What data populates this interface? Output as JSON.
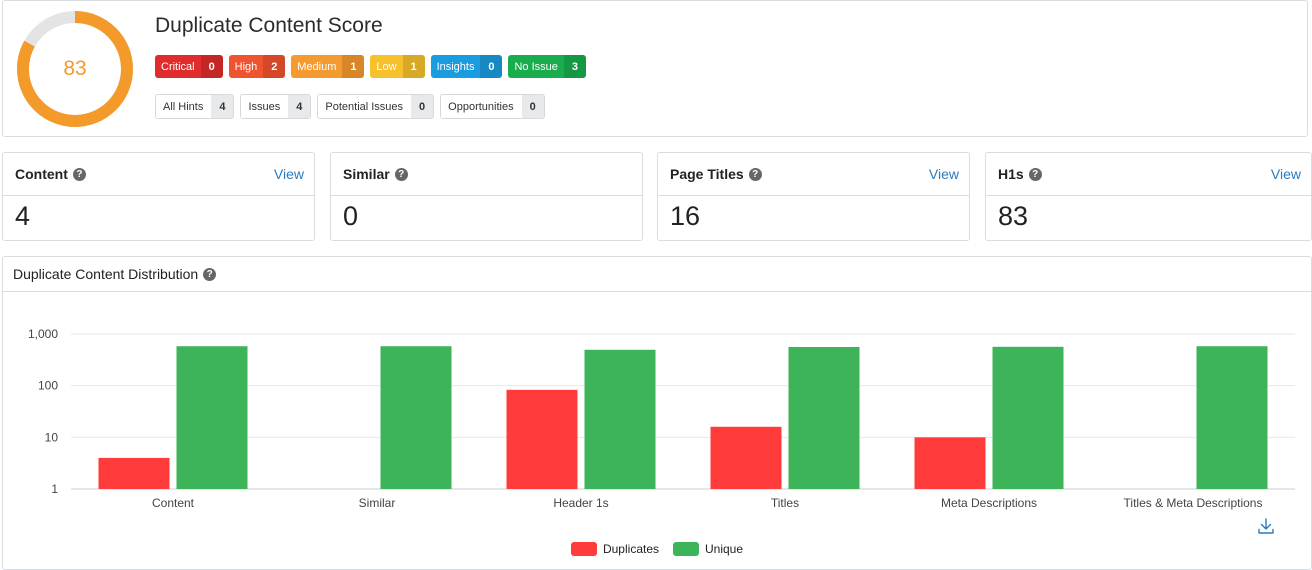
{
  "score": {
    "value": "83",
    "fraction": 0.83,
    "title": "Duplicate Content Score"
  },
  "severity": [
    {
      "label": "Critical",
      "count": "0",
      "color": "#e02c2c"
    },
    {
      "label": "High",
      "count": "2",
      "color": "#f0532f"
    },
    {
      "label": "Medium",
      "count": "1",
      "color": "#f59a2e"
    },
    {
      "label": "Low",
      "count": "1",
      "color": "#f6c12c"
    },
    {
      "label": "Insights",
      "count": "0",
      "color": "#1a9ce0"
    },
    {
      "label": "No Issue",
      "count": "3",
      "color": "#19ad4e"
    }
  ],
  "hints": [
    {
      "label": "All Hints",
      "count": "4"
    },
    {
      "label": "Issues",
      "count": "4"
    },
    {
      "label": "Potential Issues",
      "count": "0"
    },
    {
      "label": "Opportunities",
      "count": "0"
    }
  ],
  "cards": {
    "content": {
      "title": "Content",
      "value": "4",
      "view": "View"
    },
    "similar": {
      "title": "Similar",
      "value": "0"
    },
    "titles": {
      "title": "Page Titles",
      "value": "16",
      "view": "View"
    },
    "h1s": {
      "title": "H1s",
      "value": "83",
      "view": "View"
    }
  },
  "colors": {
    "accent": "#f39a2b",
    "ring_track": "#e4e4e4",
    "link": "#2a7bbf"
  },
  "chart_data": {
    "type": "bar",
    "title": "Duplicate Content Distribution",
    "categories": [
      "Content",
      "Similar",
      "Header 1s",
      "Titles",
      "Meta Descriptions",
      "Titles & Meta Descriptions"
    ],
    "series": [
      {
        "name": "Duplicates",
        "color": "#ff3b3b",
        "values": [
          4,
          0,
          83,
          16,
          10,
          0
        ]
      },
      {
        "name": "Unique",
        "color": "#3db35a",
        "values": [
          580,
          580,
          495,
          560,
          565,
          580
        ]
      }
    ],
    "y_scale": "log",
    "ylim": [
      1,
      1000
    ],
    "yticks": [
      1,
      10,
      100,
      1000
    ],
    "ytick_labels": [
      "1",
      "10",
      "100",
      "1,000"
    ],
    "grid": true,
    "legend": "bottom-center"
  }
}
